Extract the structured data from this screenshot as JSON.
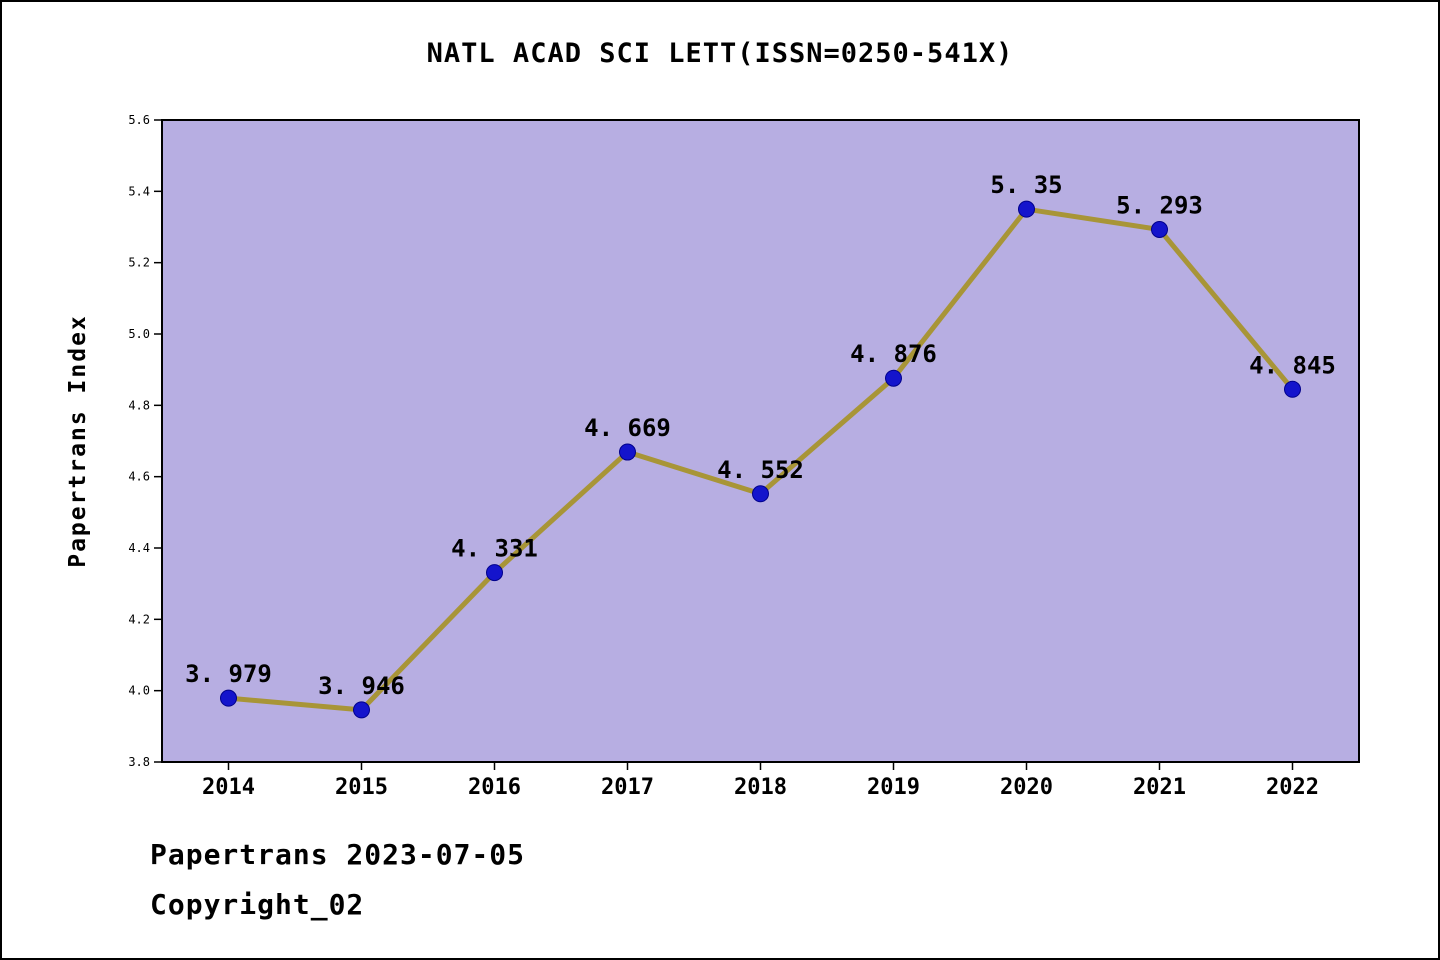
{
  "title": "NATL ACAD SCI LETT(ISSN=0250-541X)",
  "footer": {
    "line1": "Papertrans 2023-07-05",
    "line2": "Copyright_02"
  },
  "chart_data": {
    "type": "line",
    "title": "NATL ACAD SCI LETT(ISSN=0250-541X)",
    "categories": [
      "2014",
      "2015",
      "2016",
      "2017",
      "2018",
      "2019",
      "2020",
      "2021",
      "2022"
    ],
    "values": [
      3.979,
      3.946,
      4.331,
      4.669,
      4.552,
      4.876,
      5.35,
      5.293,
      4.845
    ],
    "point_labels": [
      "3. 979",
      "3. 946",
      "4. 331",
      "4. 669",
      "4. 552",
      "4. 876",
      "5. 35",
      "5. 293",
      "4. 845"
    ],
    "xlabel": "",
    "ylabel": "Papertrans Index",
    "ylim": [
      3.8,
      5.6
    ],
    "ytick_step": 0.2,
    "ytick_labels": [
      "3.8",
      "4.0",
      "4.2",
      "4.4",
      "4.6",
      "4.8",
      "5.0",
      "5.2",
      "5.4",
      "5.6"
    ],
    "grid": false,
    "legend": "none",
    "colors": {
      "plot_bg": "#b7aee2",
      "line": "#a89537",
      "marker": "#1414cc",
      "marker_edge": "#00008b",
      "axis": "#000000",
      "text": "#000000"
    }
  }
}
